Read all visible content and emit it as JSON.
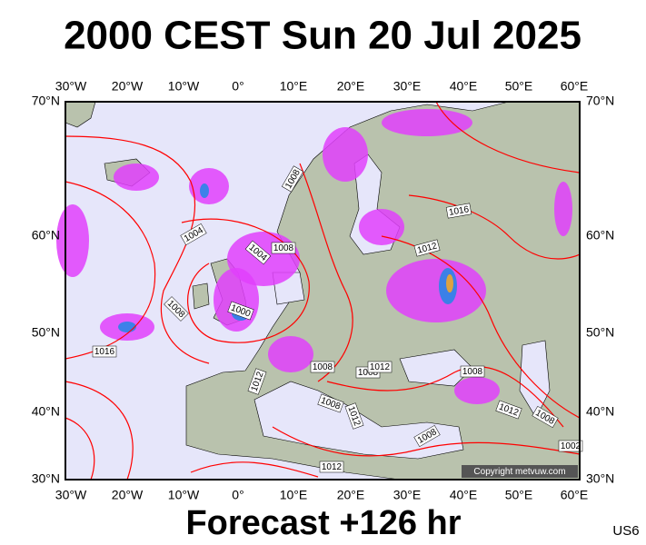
{
  "header": {
    "title": "2000 CEST Sun 20 Jul 2025"
  },
  "map": {
    "lon_labels": [
      "30°W",
      "20°W",
      "10°W",
      "0°",
      "10°E",
      "20°E",
      "30°E",
      "40°E",
      "50°E",
      "60°E"
    ],
    "lat_labels": [
      "70°N",
      "60°N",
      "50°N",
      "40°N",
      "30°N"
    ],
    "isobar_labels": [
      "1008",
      "1004",
      "1004",
      "1008",
      "1000",
      "1008",
      "1016",
      "1008",
      "1008",
      "1012",
      "1012",
      "1008",
      "1012",
      "1008",
      "1012",
      "1008",
      "1008",
      "1012",
      "1016",
      "1012",
      "1002"
    ],
    "copyright": "Copyright metvuw.com"
  },
  "footer": {
    "forecast": "Forecast +126 hr",
    "code": "US6"
  }
}
